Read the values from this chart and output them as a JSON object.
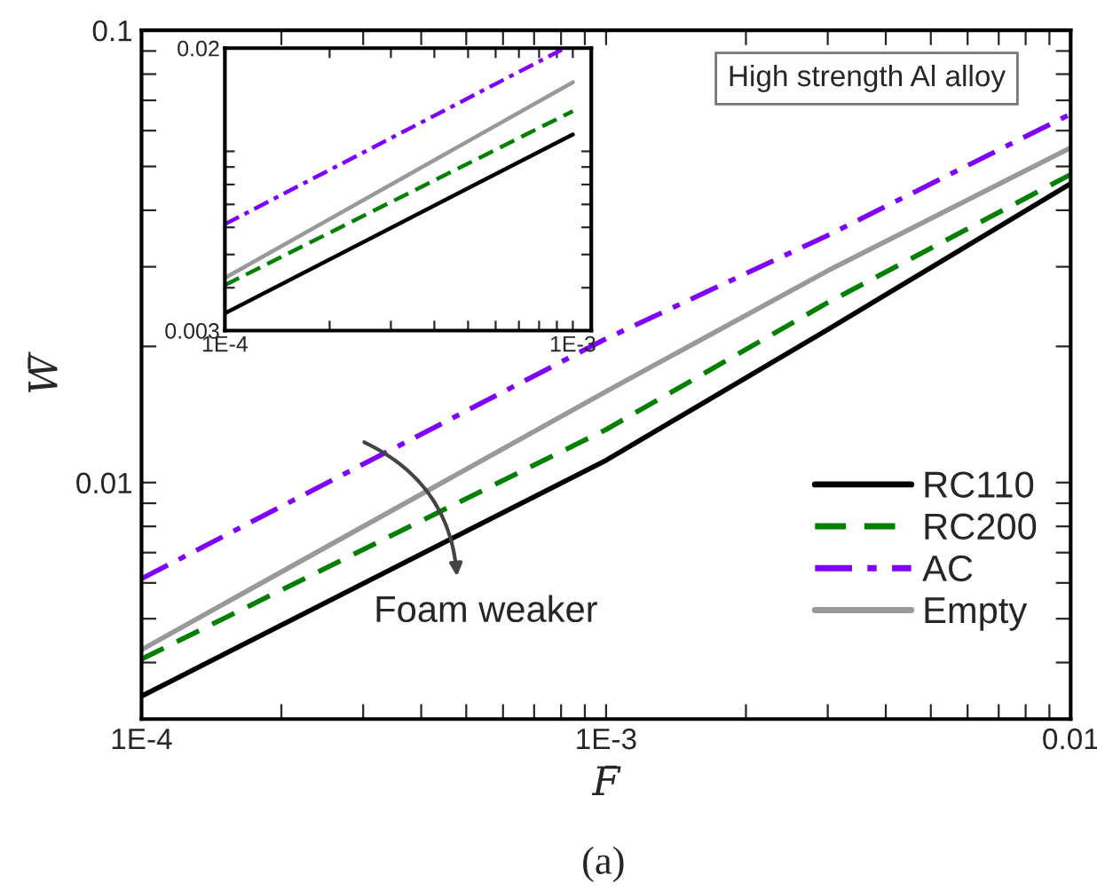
{
  "chart_data": [
    {
      "type": "line",
      "xlabel": "F̄",
      "ylabel": "W̄",
      "log": "xy",
      "grid": false,
      "legend": "lower right",
      "x": [
        0.0001,
        0.001,
        0.003,
        0.01
      ],
      "xlim": [
        0.0001,
        0.01
      ],
      "ylim": [
        0.003,
        0.1
      ],
      "xticks": [
        {
          "value": 0.0001,
          "label": "1E-4"
        },
        {
          "value": 0.0002,
          "label": null
        },
        {
          "value": 0.0003,
          "label": null
        },
        {
          "value": 0.0004,
          "label": null
        },
        {
          "value": 0.0005,
          "label": null
        },
        {
          "value": 0.0006,
          "label": null
        },
        {
          "value": 0.0007,
          "label": null
        },
        {
          "value": 0.0008,
          "label": null
        },
        {
          "value": 0.0009,
          "label": null
        },
        {
          "value": 0.001,
          "label": "1E-3"
        },
        {
          "value": 0.002,
          "label": null
        },
        {
          "value": 0.003,
          "label": null
        },
        {
          "value": 0.004,
          "label": null
        },
        {
          "value": 0.005,
          "label": null
        },
        {
          "value": 0.006,
          "label": null
        },
        {
          "value": 0.007,
          "label": null
        },
        {
          "value": 0.008,
          "label": null
        },
        {
          "value": 0.009,
          "label": null
        },
        {
          "value": 0.01,
          "label": "0.01"
        }
      ],
      "yticks": [
        {
          "value": 0.003,
          "label": null
        },
        {
          "value": 0.004,
          "label": null
        },
        {
          "value": 0.005,
          "label": null
        },
        {
          "value": 0.006,
          "label": null
        },
        {
          "value": 0.007,
          "label": null
        },
        {
          "value": 0.008,
          "label": null
        },
        {
          "value": 0.009,
          "label": null
        },
        0.01,
        {
          "value": 0.02,
          "label": null
        },
        {
          "value": 0.03,
          "label": null
        },
        {
          "value": 0.04,
          "label": null
        },
        {
          "value": 0.05,
          "label": null
        },
        {
          "value": 0.06,
          "label": null
        },
        {
          "value": 0.07,
          "label": null
        },
        {
          "value": 0.08,
          "label": null
        },
        {
          "value": 0.09,
          "label": null
        },
        0.1
      ],
      "series": [
        {
          "name": "RC110",
          "color": "#000000",
          "line_style": "solid",
          "values": [
            0.00337,
            0.0112,
            0.0218,
            0.0458
          ]
        },
        {
          "name": "RC200",
          "color": "#008000",
          "line_style": "dashed",
          "values": [
            0.00407,
            0.0131,
            0.025,
            0.048
          ]
        },
        {
          "name": "AC",
          "color": "#8000ff",
          "line_style": "dashdot",
          "values": [
            0.00613,
            0.0208,
            0.0352,
            0.0653
          ]
        },
        {
          "name": "Empty",
          "color": "#999999",
          "line_style": "solid",
          "values": [
            0.00427,
            0.0159,
            0.0294,
            0.055
          ]
        }
      ],
      "annotations": [
        "High strength Al alloy",
        "Foam weaker",
        "(a)"
      ]
    },
    {
      "type": "line",
      "log": "xy",
      "grid": false,
      "x": [
        0.0001,
        0.001
      ],
      "xlim": [
        0.0001,
        0.00113
      ],
      "ylim": [
        0.003,
        0.02
      ],
      "xticks": [
        {
          "value": 0.0001,
          "label": "1E-4"
        },
        {
          "value": 0.0002,
          "label": null
        },
        {
          "value": 0.0003,
          "label": null
        },
        {
          "value": 0.0004,
          "label": null
        },
        {
          "value": 0.0005,
          "label": null
        },
        {
          "value": 0.0006,
          "label": null
        },
        {
          "value": 0.0007,
          "label": null
        },
        {
          "value": 0.0008,
          "label": null
        },
        {
          "value": 0.0009,
          "label": null
        },
        {
          "value": 0.001,
          "label": "1E-3"
        }
      ],
      "yticks": [
        0.003,
        {
          "value": 0.004,
          "label": null
        },
        {
          "value": 0.005,
          "label": null
        },
        {
          "value": 0.006,
          "label": null
        },
        {
          "value": 0.007,
          "label": null
        },
        {
          "value": 0.008,
          "label": null
        },
        {
          "value": 0.009,
          "label": null
        },
        {
          "value": 0.01,
          "label": null
        },
        0.02
      ],
      "series": [
        {
          "color": "#000000",
          "line_style": "solid",
          "values": [
            0.00337,
            0.0112
          ]
        },
        {
          "color": "#008000",
          "line_style": "dashed",
          "values": [
            0.00407,
            0.0131
          ]
        },
        {
          "color": "#8000ff",
          "line_style": "dashdot",
          "x": [
            0.0001,
            0.00093
          ],
          "values": [
            0.00613,
            0.0198
          ]
        },
        {
          "color": "#999999",
          "line_style": "solid",
          "values": [
            0.00427,
            0.0159
          ]
        }
      ]
    }
  ]
}
